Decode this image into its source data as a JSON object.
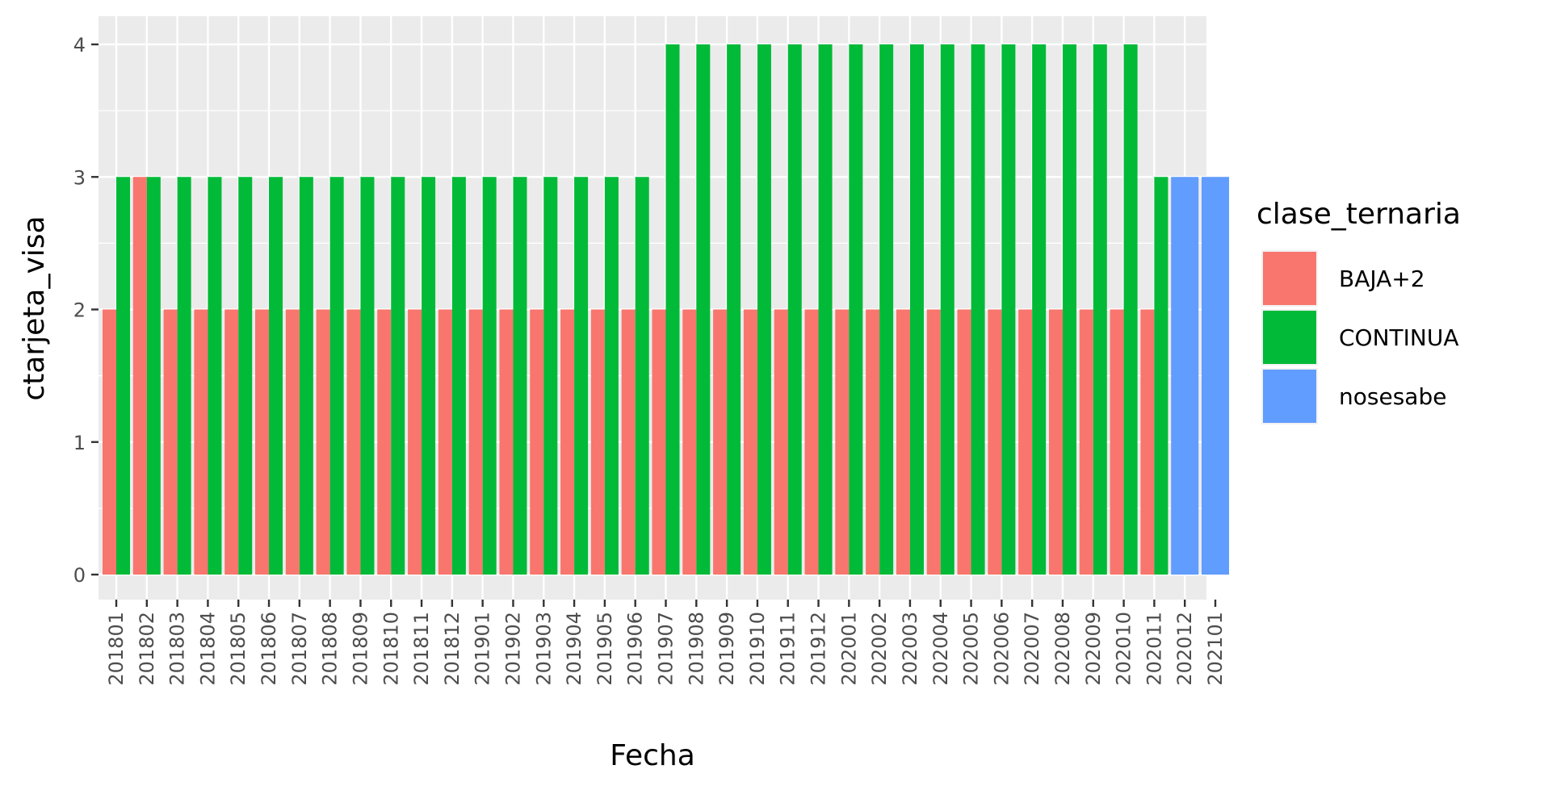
{
  "chart_data": {
    "type": "bar",
    "xlabel": "Fecha",
    "ylabel": "ctarjeta_visa",
    "ylim": [
      0,
      4.2
    ],
    "yticks": [
      0,
      1,
      2,
      3,
      4
    ],
    "grid": true,
    "legend_position": "right",
    "legend_title": "clase_ternaria",
    "categories": [
      "201801",
      "201802",
      "201803",
      "201804",
      "201805",
      "201806",
      "201807",
      "201808",
      "201809",
      "201810",
      "201811",
      "201812",
      "201901",
      "201902",
      "201903",
      "201904",
      "201905",
      "201906",
      "201907",
      "201908",
      "201909",
      "201910",
      "201911",
      "201912",
      "202001",
      "202002",
      "202003",
      "202004",
      "202005",
      "202006",
      "202007",
      "202008",
      "202009",
      "202010",
      "202011",
      "202012",
      "202101"
    ],
    "series": [
      {
        "name": "BAJA+2",
        "color": "#F8766D",
        "values": [
          2,
          3,
          2,
          2,
          2,
          2,
          2,
          2,
          2,
          2,
          2,
          2,
          2,
          2,
          2,
          2,
          2,
          2,
          2,
          2,
          2,
          2,
          2,
          2,
          2,
          2,
          2,
          2,
          2,
          2,
          2,
          2,
          2,
          2,
          2,
          null,
          null
        ]
      },
      {
        "name": "CONTINUA",
        "color": "#00BA38",
        "values": [
          3,
          3,
          3,
          3,
          3,
          3,
          3,
          3,
          3,
          3,
          3,
          3,
          3,
          3,
          3,
          3,
          3,
          3,
          4,
          4,
          4,
          4,
          4,
          4,
          4,
          4,
          4,
          4,
          4,
          4,
          4,
          4,
          4,
          4,
          3,
          null,
          null
        ]
      },
      {
        "name": "nosesabe",
        "color": "#619CFF",
        "values": [
          null,
          null,
          null,
          null,
          null,
          null,
          null,
          null,
          null,
          null,
          null,
          null,
          null,
          null,
          null,
          null,
          null,
          null,
          null,
          null,
          null,
          null,
          null,
          null,
          null,
          null,
          null,
          null,
          null,
          null,
          null,
          null,
          null,
          null,
          null,
          3,
          3
        ]
      }
    ]
  }
}
